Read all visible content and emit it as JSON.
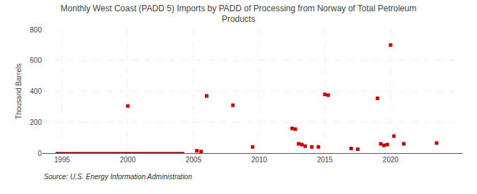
{
  "chart_data": {
    "type": "scatter",
    "title": "Monthly West Coast (PADD 5) Imports by PADD of Processing from Norway of Total Petroleum\nProducts",
    "y_label": "Thousand Barrels",
    "annotations": [
      "Source: U.S. Energy Information Administration"
    ],
    "xlim": [
      1993.5,
      2025.5
    ],
    "xticks": [
      1995,
      2000,
      2005,
      2010,
      2015,
      2020
    ],
    "ylim": [
      0,
      800
    ],
    "yticks": [
      0,
      200,
      400,
      600,
      800
    ],
    "grid": true,
    "series": [
      {
        "type": "line",
        "color": "#8b0000",
        "line_style": "solid",
        "x": [
          1994.5,
          2004.3
        ],
        "values": [
          2,
          2
        ]
      },
      {
        "type": "scatter",
        "color": "#cc0000",
        "marker": "square",
        "x": [
          2000.0,
          2005.25,
          2005.58,
          2006.0,
          2008.0,
          2009.5,
          2012.5,
          2012.75,
          2013.0,
          2013.25,
          2013.5,
          2014.0,
          2014.5,
          2015.0,
          2015.25,
          2017.0,
          2017.5,
          2019.0,
          2019.25,
          2019.5,
          2019.75,
          2020.0,
          2020.25,
          2021.0,
          2023.5
        ],
        "values": [
          305,
          15,
          10,
          370,
          310,
          40,
          160,
          155,
          60,
          55,
          45,
          40,
          40,
          380,
          375,
          30,
          25,
          355,
          60,
          50,
          55,
          700,
          110,
          60,
          65
        ]
      }
    ]
  }
}
